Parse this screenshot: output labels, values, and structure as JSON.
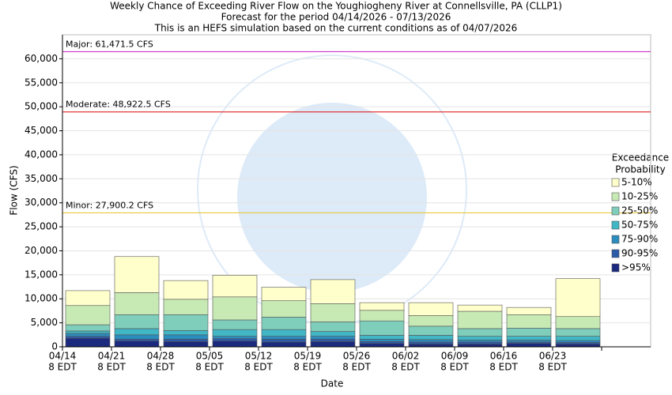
{
  "chart_data": {
    "type": "stacked-bar",
    "title": "Weekly Chance of Exceeding River Flow on the Youghiogheny River at Connellsville, PA (CLLP1)",
    "subtitle": [
      "Forecast for the period 04/14/2026 - 07/13/2026",
      "This is an HEFS simulation based on the current conditions as of 04/07/2026"
    ],
    "x_label": "Date",
    "y_label": "Flow (CFS)",
    "categories": [
      "04/14",
      "04/21",
      "04/28",
      "05/05",
      "05/12",
      "05/19",
      "05/26",
      "06/02",
      "06/09",
      "06/16",
      "06/23"
    ],
    "x_tick_sublabel": "8 EDT",
    "legend_title": [
      "Exceedance",
      "Probability"
    ],
    "series": [
      {
        "name": ">95%",
        "color": "#1b2a7e",
        "values": [
          1800,
          1200,
          1100,
          1200,
          1000,
          1100,
          700,
          600,
          600,
          700,
          600
        ]
      },
      {
        "name": "90-95%",
        "color": "#2c5ba8",
        "values": [
          400,
          400,
          500,
          500,
          600,
          500,
          400,
          400,
          400,
          300,
          300
        ]
      },
      {
        "name": "75-90%",
        "color": "#2b8cbe",
        "values": [
          600,
          900,
          900,
          500,
          600,
          600,
          500,
          500,
          400,
          400,
          400
        ]
      },
      {
        "name": "50-75%",
        "color": "#41b6c4",
        "values": [
          500,
          1300,
          900,
          1400,
          1400,
          1000,
          800,
          900,
          800,
          800,
          900
        ]
      },
      {
        "name": "25-50%",
        "color": "#7fcdbb",
        "values": [
          1300,
          2900,
          3300,
          2000,
          2600,
          2000,
          3000,
          1900,
          1600,
          1700,
          1600
        ]
      },
      {
        "name": "10-25%",
        "color": "#c7e9b4",
        "values": [
          4000,
          4600,
          3200,
          4800,
          3400,
          3800,
          2200,
          2200,
          3600,
          2800,
          2500
        ]
      },
      {
        "name": "5-10%",
        "color": "#ffffcc",
        "values": [
          3100,
          7500,
          3900,
          4500,
          2800,
          5000,
          1600,
          2700,
          1300,
          1500,
          7900
        ]
      }
    ],
    "thresholds": [
      {
        "value": 61471.5,
        "label": "Major: 61,471.5 CFS",
        "color": "#cc33cc"
      },
      {
        "value": 48922.5,
        "label": "Moderate: 48,922.5 CFS",
        "color": "#dd2222"
      },
      {
        "value": 27900.2,
        "label": "Minor: 27,900.2 CFS",
        "color": "#e8c840"
      }
    ],
    "ylim": [
      0,
      65000
    ],
    "yticks": [
      0,
      {
        "value": 5000,
        "label": "5,000"
      },
      {
        "value": 10000,
        "label": "10,000"
      },
      {
        "value": 15000,
        "label": "15,000"
      },
      {
        "value": 20000,
        "label": "20,000"
      },
      {
        "value": 25000,
        "label": "25,000"
      },
      {
        "value": 30000,
        "label": "30,000"
      },
      {
        "value": 35000,
        "label": "35,000"
      },
      {
        "value": 40000,
        "label": "40,000"
      },
      {
        "value": 45000,
        "label": "45,000"
      },
      {
        "value": 50000,
        "label": "50,000"
      },
      {
        "value": 55000,
        "label": "55,000"
      },
      {
        "value": 60000,
        "label": "60,000"
      }
    ],
    "grid": true
  }
}
